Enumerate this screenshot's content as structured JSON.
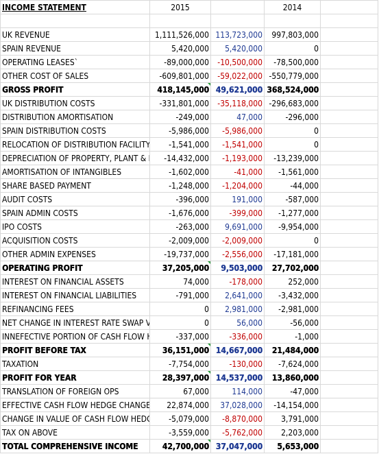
{
  "header": {
    "title": "INCOME STATEMENT",
    "year_a": "2015",
    "year_b": "2014"
  },
  "rows": [
    {
      "label": "UK REVENUE",
      "a": "1,111,526,000",
      "b": "113,723,000",
      "b_color": "pos",
      "c": "997,803,000",
      "bold": false
    },
    {
      "label": "SPAIN REVENUE",
      "a": "5,420,000",
      "b": "5,420,000",
      "b_color": "pos",
      "c": "0",
      "bold": false
    },
    {
      "label": "OPERATING LEASES`",
      "a": "-89,000,000",
      "b": "-10,500,000",
      "b_color": "neg",
      "c": "-78,500,000",
      "bold": false
    },
    {
      "label": "OTHER COST OF SALES",
      "a": "-609,801,000",
      "b": "-59,022,000",
      "b_color": "neg",
      "c": "-550,779,000",
      "bold": false
    },
    {
      "label": "GROSS PROFIT",
      "a": "418,145,000",
      "b": "49,621,000",
      "b_color": "pos",
      "c": "368,524,000",
      "bold": true,
      "flag": true
    },
    {
      "label": "UK DISTRIBUTION COSTS",
      "a": "-331,801,000",
      "b": "-35,118,000",
      "b_color": "neg",
      "c": "-296,683,000",
      "bold": false
    },
    {
      "label": "DISTRIBUTION AMORTISATION",
      "a": "-249,000",
      "b": "47,000",
      "b_color": "pos",
      "c": "-296,000",
      "bold": false
    },
    {
      "label": "SPAIN DISTRIBUTION COSTS",
      "a": "-5,986,000",
      "b": "-5,986,000",
      "b_color": "neg",
      "c": "0",
      "bold": false
    },
    {
      "label": "RELOCATION OF DISTRIBUTION FACILITY",
      "a": "-1,541,000",
      "b": "-1,541,000",
      "b_color": "neg",
      "c": "0",
      "bold": false
    },
    {
      "label": "DEPRECIATION OF PROPERTY, PLANT & EQUIP",
      "a": "-14,432,000",
      "b": "-1,193,000",
      "b_color": "neg",
      "c": "-13,239,000",
      "bold": false
    },
    {
      "label": "AMORTISATION OF INTANGIBLES",
      "a": "-1,602,000",
      "b": "-41,000",
      "b_color": "neg",
      "c": "-1,561,000",
      "bold": false
    },
    {
      "label": "SHARE BASED PAYMENT",
      "a": "-1,248,000",
      "b": "-1,204,000",
      "b_color": "neg",
      "c": "-44,000",
      "bold": false
    },
    {
      "label": "AUDIT COSTS",
      "a": "-396,000",
      "b": "191,000",
      "b_color": "pos",
      "c": "-587,000",
      "bold": false
    },
    {
      "label": "SPAIN ADMIN COSTS",
      "a": "-1,676,000",
      "b": "-399,000",
      "b_color": "neg",
      "c": "-1,277,000",
      "bold": false
    },
    {
      "label": "IPO COSTS",
      "a": "-263,000",
      "b": "9,691,000",
      "b_color": "pos",
      "c": "-9,954,000",
      "bold": false
    },
    {
      "label": "ACQUISITION COSTS",
      "a": "-2,009,000",
      "b": "-2,009,000",
      "b_color": "neg",
      "c": "0",
      "bold": false
    },
    {
      "label": "OTHER ADMIN EXPENSES",
      "a": "-19,737,000",
      "b": "-2,556,000",
      "b_color": "neg",
      "c": "-17,181,000",
      "bold": false
    },
    {
      "label": "OPERATING PROFIT",
      "a": "37,205,000",
      "b": "9,503,000",
      "b_color": "pos",
      "c": "27,702,000",
      "bold": true,
      "flag": true
    },
    {
      "label": "INTEREST ON FINANCIAL ASSETS",
      "a": "74,000",
      "b": "-178,000",
      "b_color": "neg",
      "c": "252,000",
      "bold": false
    },
    {
      "label": "INTEREST ON FINANCIAL LIABILITIES",
      "a": "-791,000",
      "b": "2,641,000",
      "b_color": "pos",
      "c": "-3,432,000",
      "bold": false
    },
    {
      "label": "REFINANCING FEES",
      "a": "0",
      "b": "2,981,000",
      "b_color": "pos",
      "c": "-2,981,000",
      "bold": false
    },
    {
      "label": "NET CHANGE IN INTEREST RATE SWAP VALUE",
      "a": "0",
      "b": "56,000",
      "b_color": "pos",
      "c": "-56,000",
      "bold": false
    },
    {
      "label": "INNEFECTIVE PORTION OF CASH FLOW HEDGES",
      "a": "-337,000",
      "b": "-336,000",
      "b_color": "neg",
      "c": "-1,000",
      "bold": false
    },
    {
      "label": "PROFIT BEFORE TAX",
      "a": "36,151,000",
      "b": "14,667,000",
      "b_color": "pos",
      "c": "21,484,000",
      "bold": true,
      "flag": true
    },
    {
      "label": "TAXATION",
      "a": "-7,754,000",
      "b": "-130,000",
      "b_color": "neg",
      "c": "-7,624,000",
      "bold": false
    },
    {
      "label": "PROFIT FOR YEAR",
      "a": "28,397,000",
      "b": "14,537,000",
      "b_color": "pos",
      "c": "13,860,000",
      "bold": true,
      "flag": true
    },
    {
      "label": "TRANSLATION OF FOREIGN OPS",
      "a": "67,000",
      "b": "114,000",
      "b_color": "pos",
      "c": "-47,000",
      "bold": false
    },
    {
      "label": "EFFECTIVE CASH FLOW HEDGE CHANGES",
      "a": "22,874,000",
      "b": "37,028,000",
      "b_color": "pos",
      "c": "-14,154,000",
      "bold": false
    },
    {
      "label": "CHANGE IN VALUE OF CASH FLOW HEDGE",
      "a": "-5,079,000",
      "b": "-8,870,000",
      "b_color": "neg",
      "c": "3,791,000",
      "bold": false
    },
    {
      "label": "TAX ON ABOVE",
      "a": "-3,559,000",
      "b": "-5,762,000",
      "b_color": "neg",
      "c": "2,203,000",
      "bold": false
    },
    {
      "label": "TOTAL COMPREHENSIVE INCOME",
      "a": "42,700,000",
      "b": "37,047,000",
      "b_color": "pos",
      "c": "5,653,000",
      "bold": true,
      "flag": true
    }
  ],
  "colors": {
    "positive_diff": "#1f3a93",
    "negative_diff": "#c00000",
    "gridline": "#d9d9d9",
    "error_flag": "#2e9e3e"
  }
}
